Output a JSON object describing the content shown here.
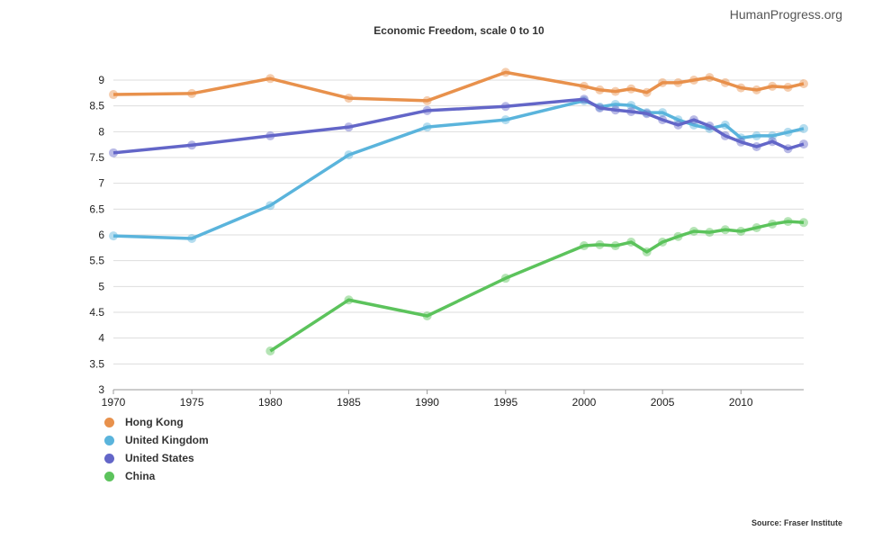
{
  "brand": "HumanProgress.org",
  "source": "Source: Fraser Institute",
  "chart_data": {
    "type": "line",
    "title": "Economic Freedom, scale 0 to 10",
    "xlabel": "",
    "ylabel": "",
    "xlim": [
      1970,
      2014
    ],
    "ylim": [
      3,
      9.5
    ],
    "xticks": [
      1970,
      1975,
      1980,
      1985,
      1990,
      1995,
      2000,
      2005,
      2010
    ],
    "yticks": [
      3,
      3.5,
      4,
      4.5,
      5,
      5.5,
      6,
      6.5,
      7,
      7.5,
      8,
      8.5,
      9
    ],
    "grid": true,
    "legend_position": "bottom-left",
    "x": [
      1970,
      1975,
      1980,
      1985,
      1990,
      1995,
      2000,
      2001,
      2002,
      2003,
      2004,
      2005,
      2006,
      2007,
      2008,
      2009,
      2010,
      2011,
      2012,
      2013,
      2014
    ],
    "series": [
      {
        "name": "Hong Kong",
        "color": "#e8914c",
        "values": [
          8.72,
          8.74,
          9.03,
          8.65,
          8.6,
          9.15,
          8.88,
          8.81,
          8.78,
          8.83,
          8.76,
          8.95,
          8.95,
          9.0,
          9.05,
          8.95,
          8.85,
          8.81,
          8.88,
          8.86,
          8.93
        ]
      },
      {
        "name": "United Kingdom",
        "color": "#5ab4dc",
        "values": [
          5.98,
          5.93,
          6.57,
          7.55,
          8.09,
          8.23,
          8.6,
          8.48,
          8.53,
          8.51,
          8.37,
          8.37,
          8.23,
          8.13,
          8.06,
          8.13,
          7.88,
          7.92,
          7.92,
          7.99,
          8.06
        ]
      },
      {
        "name": "United States",
        "color": "#6366c8",
        "values": [
          7.59,
          7.74,
          7.92,
          8.09,
          8.41,
          8.49,
          8.63,
          8.46,
          8.42,
          8.39,
          8.35,
          8.23,
          8.13,
          8.23,
          8.11,
          7.92,
          7.8,
          7.71,
          7.81,
          7.67,
          7.76
        ]
      },
      {
        "name": "China",
        "color": "#5cc35c",
        "values": [
          null,
          null,
          3.75,
          4.74,
          4.43,
          5.16,
          5.79,
          5.81,
          5.79,
          5.86,
          5.67,
          5.86,
          5.97,
          6.07,
          6.05,
          6.1,
          6.07,
          6.14,
          6.21,
          6.26,
          6.24
        ]
      }
    ]
  }
}
